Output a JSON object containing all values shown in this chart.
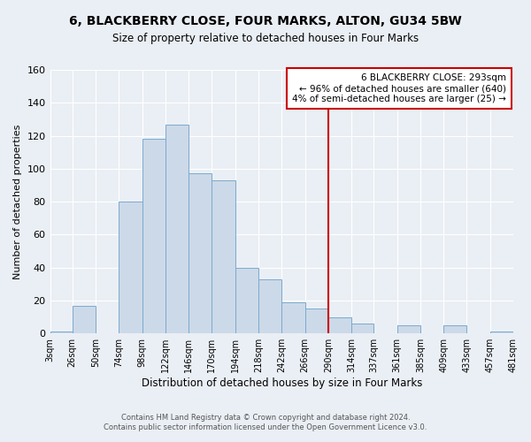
{
  "title": "6, BLACKBERRY CLOSE, FOUR MARKS, ALTON, GU34 5BW",
  "subtitle": "Size of property relative to detached houses in Four Marks",
  "xlabel": "Distribution of detached houses by size in Four Marks",
  "ylabel": "Number of detached properties",
  "bar_color": "#ccd9e8",
  "bar_edge_color": "#7aabcf",
  "background_color": "#eaeff5",
  "grid_color": "#ffffff",
  "vline_x": 290,
  "vline_color": "#cc0000",
  "bin_edges": [
    3,
    26,
    50,
    74,
    98,
    122,
    146,
    170,
    194,
    218,
    242,
    266,
    290,
    314,
    337,
    361,
    385,
    409,
    433,
    457,
    481
  ],
  "bin_counts": [
    1,
    17,
    0,
    80,
    118,
    127,
    97,
    93,
    40,
    33,
    19,
    15,
    10,
    6,
    0,
    5,
    0,
    5,
    0,
    1
  ],
  "annotation_title": "6 BLACKBERRY CLOSE: 293sqm",
  "annotation_line1": "← 96% of detached houses are smaller (640)",
  "annotation_line2": "4% of semi-detached houses are larger (25) →",
  "annotation_box_color": "#ffffff",
  "annotation_border_color": "#cc0000",
  "tick_labels": [
    "3sqm",
    "26sqm",
    "50sqm",
    "74sqm",
    "98sqm",
    "122sqm",
    "146sqm",
    "170sqm",
    "194sqm",
    "218sqm",
    "242sqm",
    "266sqm",
    "290sqm",
    "314sqm",
    "337sqm",
    "361sqm",
    "385sqm",
    "409sqm",
    "433sqm",
    "457sqm",
    "481sqm"
  ],
  "ylim": [
    0,
    160
  ],
  "yticks": [
    0,
    20,
    40,
    60,
    80,
    100,
    120,
    140,
    160
  ],
  "footer_line1": "Contains HM Land Registry data © Crown copyright and database right 2024.",
  "footer_line2": "Contains public sector information licensed under the Open Government Licence v3.0."
}
